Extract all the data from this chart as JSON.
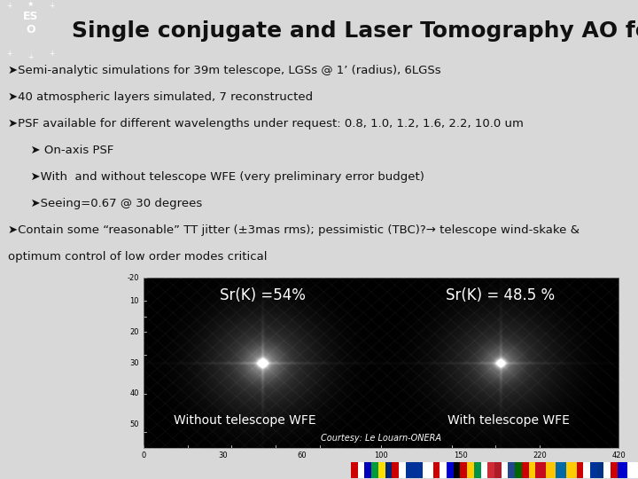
{
  "title": "Single conjugate and Laser Tomography AO for HARMONI",
  "title_fontsize": 18,
  "title_color": "#111111",
  "background_color": "#d8d8d8",
  "header_bg": "#3355aa",
  "bullet_lines": [
    "➤Semi-analytic simulations for 39m telescope, LGSs @ 1’ (radius), 6LGSs",
    "➤40 atmospheric layers simulated, 7 reconstructed",
    "➤PSF available for different wavelengths under request: 0.8, 1.0, 1.2, 1.6, 2.2, 10.0 um",
    "      ➤ On-axis PSF",
    "      ➤With  and without telescope WFE (very preliminary error budget)",
    "      ➤Seeing=0.67 @ 30 degrees",
    "➤Contain some “reasonable” TT jitter (±3mas rms); pessimistic (TBC)?→ telescope wind-skake &",
    "optimum control of low order modes critical"
  ],
  "sr_left": "Sr(K) =54%",
  "sr_right": "Sr(K) = 48.5 %",
  "label_left": "Without telescope WFE",
  "label_right": "With telescope WFE",
  "courtesy": "Courtesy: Le Louarn-ONERA",
  "text_color_body": "#111111",
  "text_color_image": "#ffffff",
  "bullet_fontsize": 9.5,
  "logo_bg": "#3355aa",
  "flags": [
    [
      "#cc0000",
      "#ffffff",
      "#0000bb"
    ],
    [
      "#009c3b",
      "#ffdf00",
      "#002776"
    ],
    [
      "#cc0000",
      "#ffffff",
      "#003399"
    ],
    [
      "#003399",
      "#ffffff"
    ],
    [
      "#cc0000",
      "#ffffff",
      "#0000cc"
    ],
    [
      "#000000",
      "#cc0000",
      "#ffcc00"
    ],
    [
      "#009246",
      "#ffffff",
      "#ce2b37"
    ],
    [
      "#ae1c28",
      "#ffffff",
      "#21468b"
    ],
    [
      "#006600",
      "#cc0000",
      "#ffcc00"
    ],
    [
      "#c60b1e",
      "#ffc400"
    ],
    [
      "#006aa7",
      "#fecc02"
    ],
    [
      "#cc0000",
      "#ffffff",
      "#003399"
    ],
    [
      "#003087",
      "#ffffff",
      "#cc0000"
    ],
    [
      "#0000cc",
      "#ffffff"
    ]
  ]
}
